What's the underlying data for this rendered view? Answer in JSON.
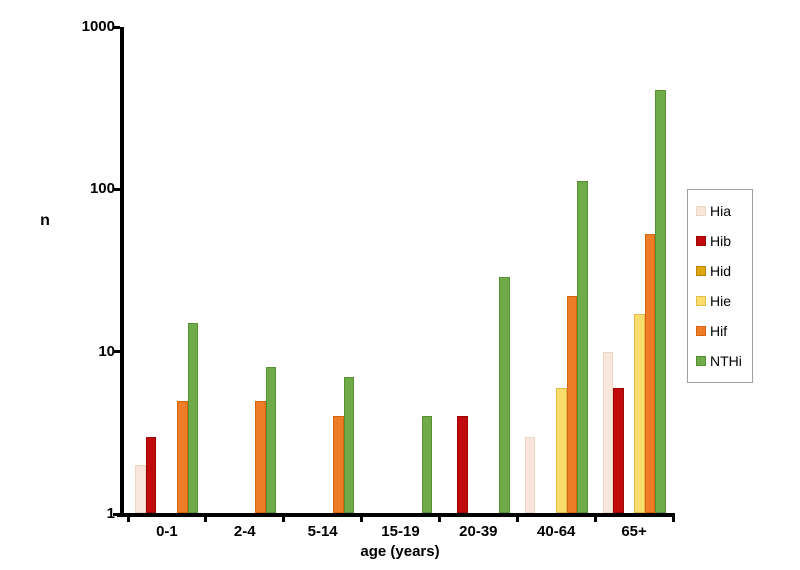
{
  "chart_data": {
    "type": "bar",
    "title": "",
    "xlabel": "age (years)",
    "ylabel": "n",
    "y_scale": "log",
    "ylim": [
      1,
      1000
    ],
    "y_ticks": [
      1,
      10,
      100,
      1000
    ],
    "grid": false,
    "legend_position": "right",
    "categories": [
      "0-1",
      "2-4",
      "5-14",
      "15-19",
      "20-39",
      "40-64",
      "65+"
    ],
    "series": [
      {
        "name": "Hia",
        "fill": "#F8E6DC",
        "edge": "#EDD5C6",
        "values": [
          2,
          0,
          0,
          0,
          0,
          3,
          10
        ]
      },
      {
        "name": "Hib",
        "fill": "#C00A0C",
        "edge": "#9C0608",
        "values": [
          3,
          0,
          0,
          0,
          4,
          0,
          6
        ]
      },
      {
        "name": "Hid",
        "fill": "#DDA512",
        "edge": "#B8860B",
        "values": [
          0,
          0,
          0,
          0,
          0,
          0,
          0
        ]
      },
      {
        "name": "Hie",
        "fill": "#FBDD6E",
        "edge": "#E4BC4B",
        "values": [
          0,
          0,
          0,
          0,
          0,
          6,
          17
        ]
      },
      {
        "name": "Hif",
        "fill": "#EE7C28",
        "edge": "#D3650F",
        "values": [
          5,
          5,
          4,
          0,
          0,
          22,
          53
        ]
      },
      {
        "name": "NTHi",
        "fill": "#6FAC49",
        "edge": "#578F35",
        "values": [
          15,
          8,
          7,
          4,
          29,
          112,
          410
        ]
      }
    ]
  }
}
